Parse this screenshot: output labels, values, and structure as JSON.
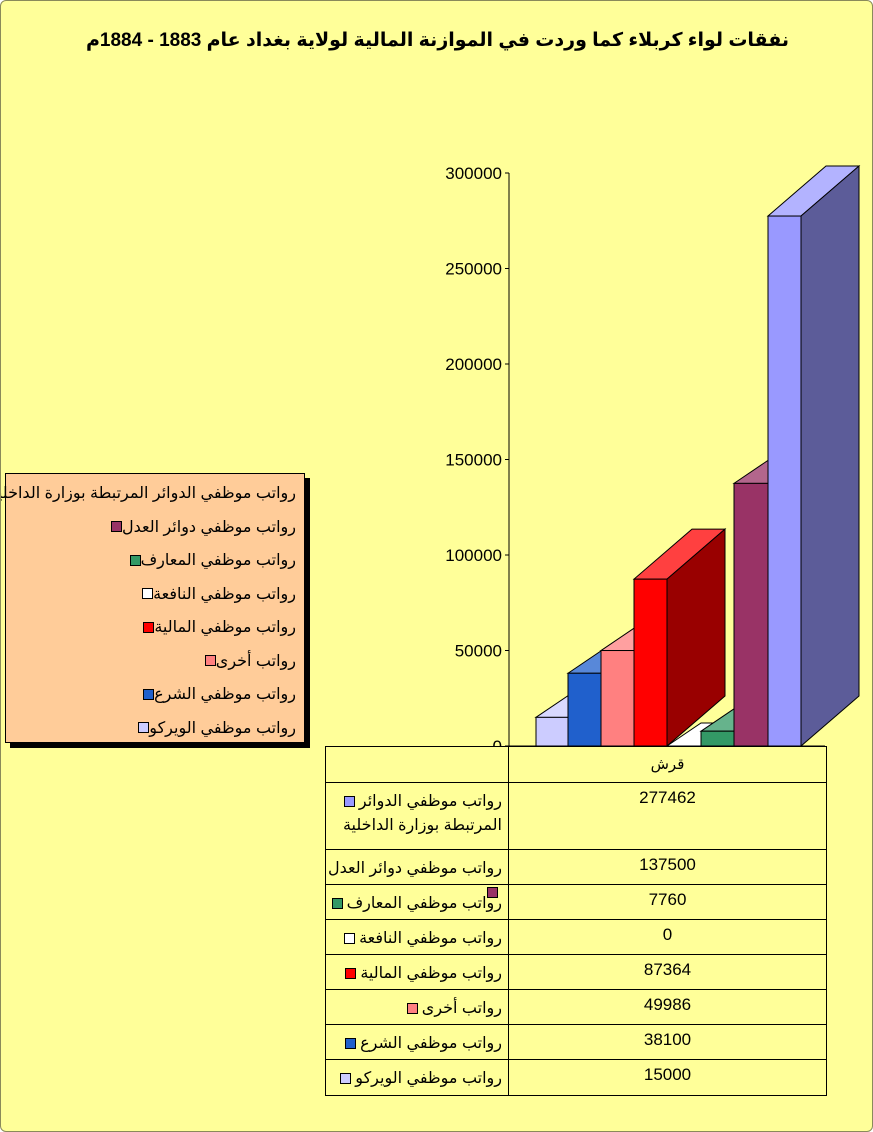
{
  "chart_data": {
    "type": "bar",
    "title": "نفقات لواء كربلاء كما وردت في الموازنة المالية لولاية بغداد عام 1883 - 1884م",
    "categories": [
      "قرش"
    ],
    "y_ticks": [
      "300000",
      "250000",
      "200000",
      "150000",
      "100000",
      "50000",
      "0"
    ],
    "ylim": [
      0,
      300000
    ],
    "legend_position": "left",
    "series": [
      {
        "name": "رواتب موظفي الدوائر المرتبطة بوزارة الداخلية",
        "value": 277462,
        "value_label": "277462",
        "color": "#9999ff",
        "table_lines": [
          "رواتب موظفي الدوائر",
          "المرتبطة بوزارة الداخلية"
        ]
      },
      {
        "name": "رواتب موظفي دوائر العدل",
        "value": 137500,
        "value_label": "137500",
        "color": "#993366",
        "table_lines": [
          "رواتب موظفي دوائر العدل"
        ]
      },
      {
        "name": "رواتب موظفي المعارف",
        "value": 7760,
        "value_label": "7760",
        "color": "#339966",
        "table_lines": [
          "رواتب موظفي المعارف"
        ]
      },
      {
        "name": "رواتب موظفي النافعة",
        "value": 0,
        "value_label": "0",
        "color": "#ffffff",
        "table_lines": [
          "رواتب موظفي النافعة"
        ]
      },
      {
        "name": "رواتب موظفي المالية",
        "value": 87364,
        "value_label": "87364",
        "color": "#ff0000",
        "table_lines": [
          "رواتب موظفي المالية"
        ]
      },
      {
        "name": "رواتب أخرى",
        "value": 49986,
        "value_label": "49986",
        "color": "#ff8080",
        "table_lines": [
          "رواتب أخرى"
        ]
      },
      {
        "name": "رواتب موظفي الشرع",
        "value": 38100,
        "value_label": "38100",
        "color": "#2060cc",
        "table_lines": [
          "رواتب موظفي الشرع"
        ]
      },
      {
        "name": "رواتب موظفي الويركو",
        "value": 15000,
        "value_label": "15000",
        "color": "#ccccff",
        "table_lines": [
          "رواتب موظفي الويركو"
        ]
      }
    ]
  }
}
